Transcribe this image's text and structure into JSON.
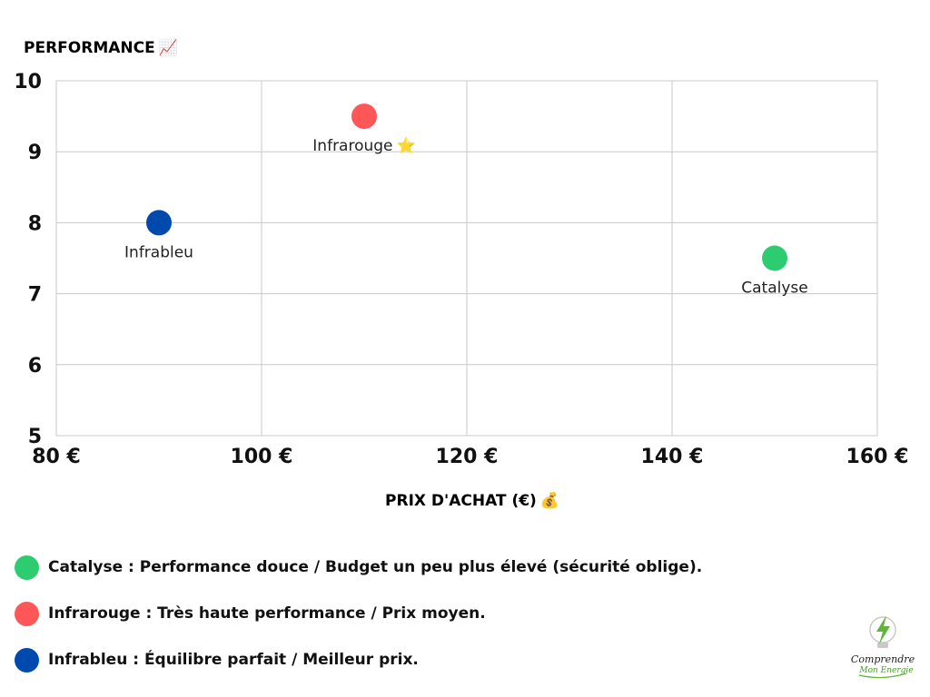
{
  "chart_data": {
    "type": "scatter",
    "title": "",
    "ylabel": "PERFORMANCE",
    "ylabel_icon": "📈",
    "xlabel": "PRIX D'ACHAT (€)",
    "xlabel_icon": "💰",
    "xlim": [
      80,
      160
    ],
    "ylim": [
      5,
      10
    ],
    "x_ticks": [
      {
        "value": 80,
        "label": "80 €"
      },
      {
        "value": 100,
        "label": "100 €"
      },
      {
        "value": 120,
        "label": "120 €"
      },
      {
        "value": 140,
        "label": "140 €"
      },
      {
        "value": 160,
        "label": "160 €"
      }
    ],
    "y_ticks": [
      {
        "value": 5,
        "label": "5"
      },
      {
        "value": 6,
        "label": "6"
      },
      {
        "value": 7,
        "label": "7"
      },
      {
        "value": 8,
        "label": "8"
      },
      {
        "value": 9,
        "label": "9"
      },
      {
        "value": 10,
        "label": "10"
      }
    ],
    "grid": true,
    "points": [
      {
        "name": "infrarouge",
        "label": "Infrarouge",
        "label_icon": "⭐",
        "x": 110,
        "y": 9.5,
        "color": "#ff5757"
      },
      {
        "name": "infrableu",
        "label": "Infrableu",
        "label_icon": "",
        "x": 90,
        "y": 8,
        "color": "#004aad"
      },
      {
        "name": "catalyse",
        "label": "Catalyse",
        "label_icon": "",
        "x": 150,
        "y": 7.5,
        "color": "#2ecc71"
      }
    ]
  },
  "legend": [
    {
      "name": "catalyse",
      "color": "#2ecc71",
      "text": "Catalyse : Performance douce / Budget un peu plus élevé (sécurité oblige)."
    },
    {
      "name": "infrarouge",
      "color": "#ff5757",
      "text": "Infrarouge : Très haute performance / Prix moyen."
    },
    {
      "name": "infrableu",
      "color": "#004aad",
      "text": "Infrableu : Équilibre parfait / Meilleur prix."
    }
  ],
  "logo": {
    "line1": "Comprendre",
    "line2": "Mon Energie",
    "icon": "lightbulb-bolt-icon"
  }
}
